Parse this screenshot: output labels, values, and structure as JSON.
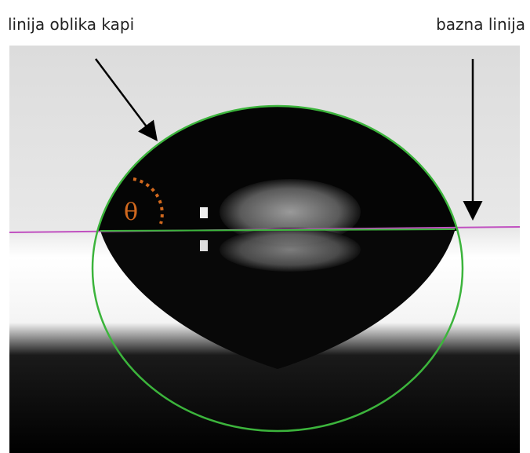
{
  "labels": {
    "drop_shape_line": "linija oblika kapi",
    "baseline": "bazna linija",
    "angle": "θ"
  }
}
